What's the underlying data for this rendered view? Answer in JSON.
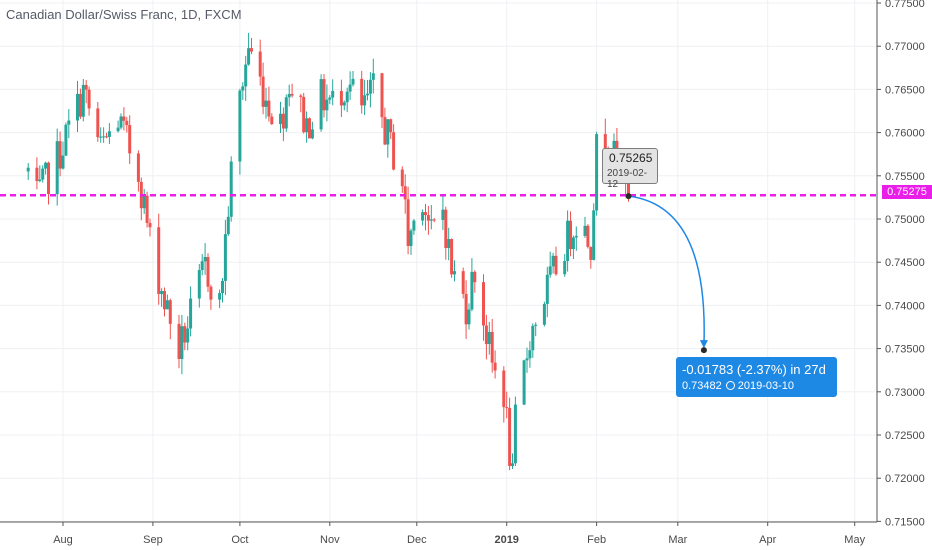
{
  "chart_data": {
    "type": "candlestick",
    "title": "Canadian Dollar/Swiss Franc, 1D, FXCM",
    "ylim": [
      0.715,
      0.775
    ],
    "y_ticks": [
      "0.71500",
      "0.72000",
      "0.72500",
      "0.73000",
      "0.73500",
      "0.74000",
      "0.74500",
      "0.75000",
      "0.75500",
      "0.76000",
      "0.76500",
      "0.77000",
      "0.77500"
    ],
    "x_ticks": [
      "Aug",
      "Sep",
      "Oct",
      "Nov",
      "Dec",
      "2019",
      "Feb",
      "Mar",
      "Apr",
      "May"
    ],
    "bull_color": "#26a69a",
    "bear_color": "#ef5350",
    "anchors": [
      [
        "2018-07-20",
        0.7555
      ],
      [
        "2018-07-23",
        0.7522
      ],
      [
        "2018-07-31",
        0.7578
      ],
      [
        "2018-08-08",
        0.7648
      ],
      [
        "2018-08-14",
        0.758
      ],
      [
        "2018-08-20",
        0.7615
      ],
      [
        "2018-08-27",
        0.7555
      ],
      [
        "2018-08-31",
        0.7475
      ],
      [
        "2018-09-05",
        0.7405
      ],
      [
        "2018-09-10",
        0.7348
      ],
      [
        "2018-09-14",
        0.7388
      ],
      [
        "2018-09-19",
        0.7445
      ],
      [
        "2018-09-24",
        0.74
      ],
      [
        "2018-09-28",
        0.7552
      ],
      [
        "2018-10-01",
        0.764
      ],
      [
        "2018-10-04",
        0.77
      ],
      [
        "2018-10-10",
        0.764
      ],
      [
        "2018-10-15",
        0.761
      ],
      [
        "2018-10-18",
        0.766
      ],
      [
        "2018-10-24",
        0.7608
      ],
      [
        "2018-10-29",
        0.764
      ],
      [
        "2018-11-02",
        0.7635
      ],
      [
        "2018-11-07",
        0.766
      ],
      [
        "2018-11-12",
        0.7625
      ],
      [
        "2018-11-16",
        0.7648
      ],
      [
        "2018-11-20",
        0.7605
      ],
      [
        "2018-11-26",
        0.7545
      ],
      [
        "2018-11-28",
        0.7475
      ],
      [
        "2018-12-03",
        0.753
      ],
      [
        "2018-12-06",
        0.748
      ],
      [
        "2018-12-10",
        0.7512
      ],
      [
        "2018-12-13",
        0.744
      ],
      [
        "2018-12-18",
        0.74
      ],
      [
        "2018-12-21",
        0.744
      ],
      [
        "2018-12-27",
        0.733
      ],
      [
        "2018-12-31",
        0.73
      ],
      [
        "2019-01-03",
        0.7195
      ],
      [
        "2019-01-04",
        0.7265
      ],
      [
        "2019-01-09",
        0.7365
      ],
      [
        "2019-01-15",
        0.742
      ],
      [
        "2019-01-21",
        0.747
      ],
      [
        "2019-01-25",
        0.75
      ],
      [
        "2019-01-30",
        0.7475
      ],
      [
        "2019-02-01",
        0.758
      ],
      [
        "2019-02-05",
        0.7598
      ],
      [
        "2019-02-08",
        0.7555
      ],
      [
        "2019-02-12",
        0.7527
      ]
    ],
    "horizontal_line": {
      "value": 0.75275,
      "label": "0.75275",
      "color": "#e91ee9"
    },
    "marker": {
      "date": "2019-02-12",
      "value": 0.75265,
      "price": "0.75265",
      "date_label": "2019-02-12"
    },
    "projection": {
      "from": {
        "date": "2019-02-12",
        "value": 0.75265
      },
      "to": {
        "date": "2019-03-10",
        "value": 0.73482
      },
      "change_label": "-0.01783 (-2.37%) in 27d",
      "target_price": "0.73482",
      "target_date": "2019-03-10",
      "color": "#1e88e5"
    }
  }
}
